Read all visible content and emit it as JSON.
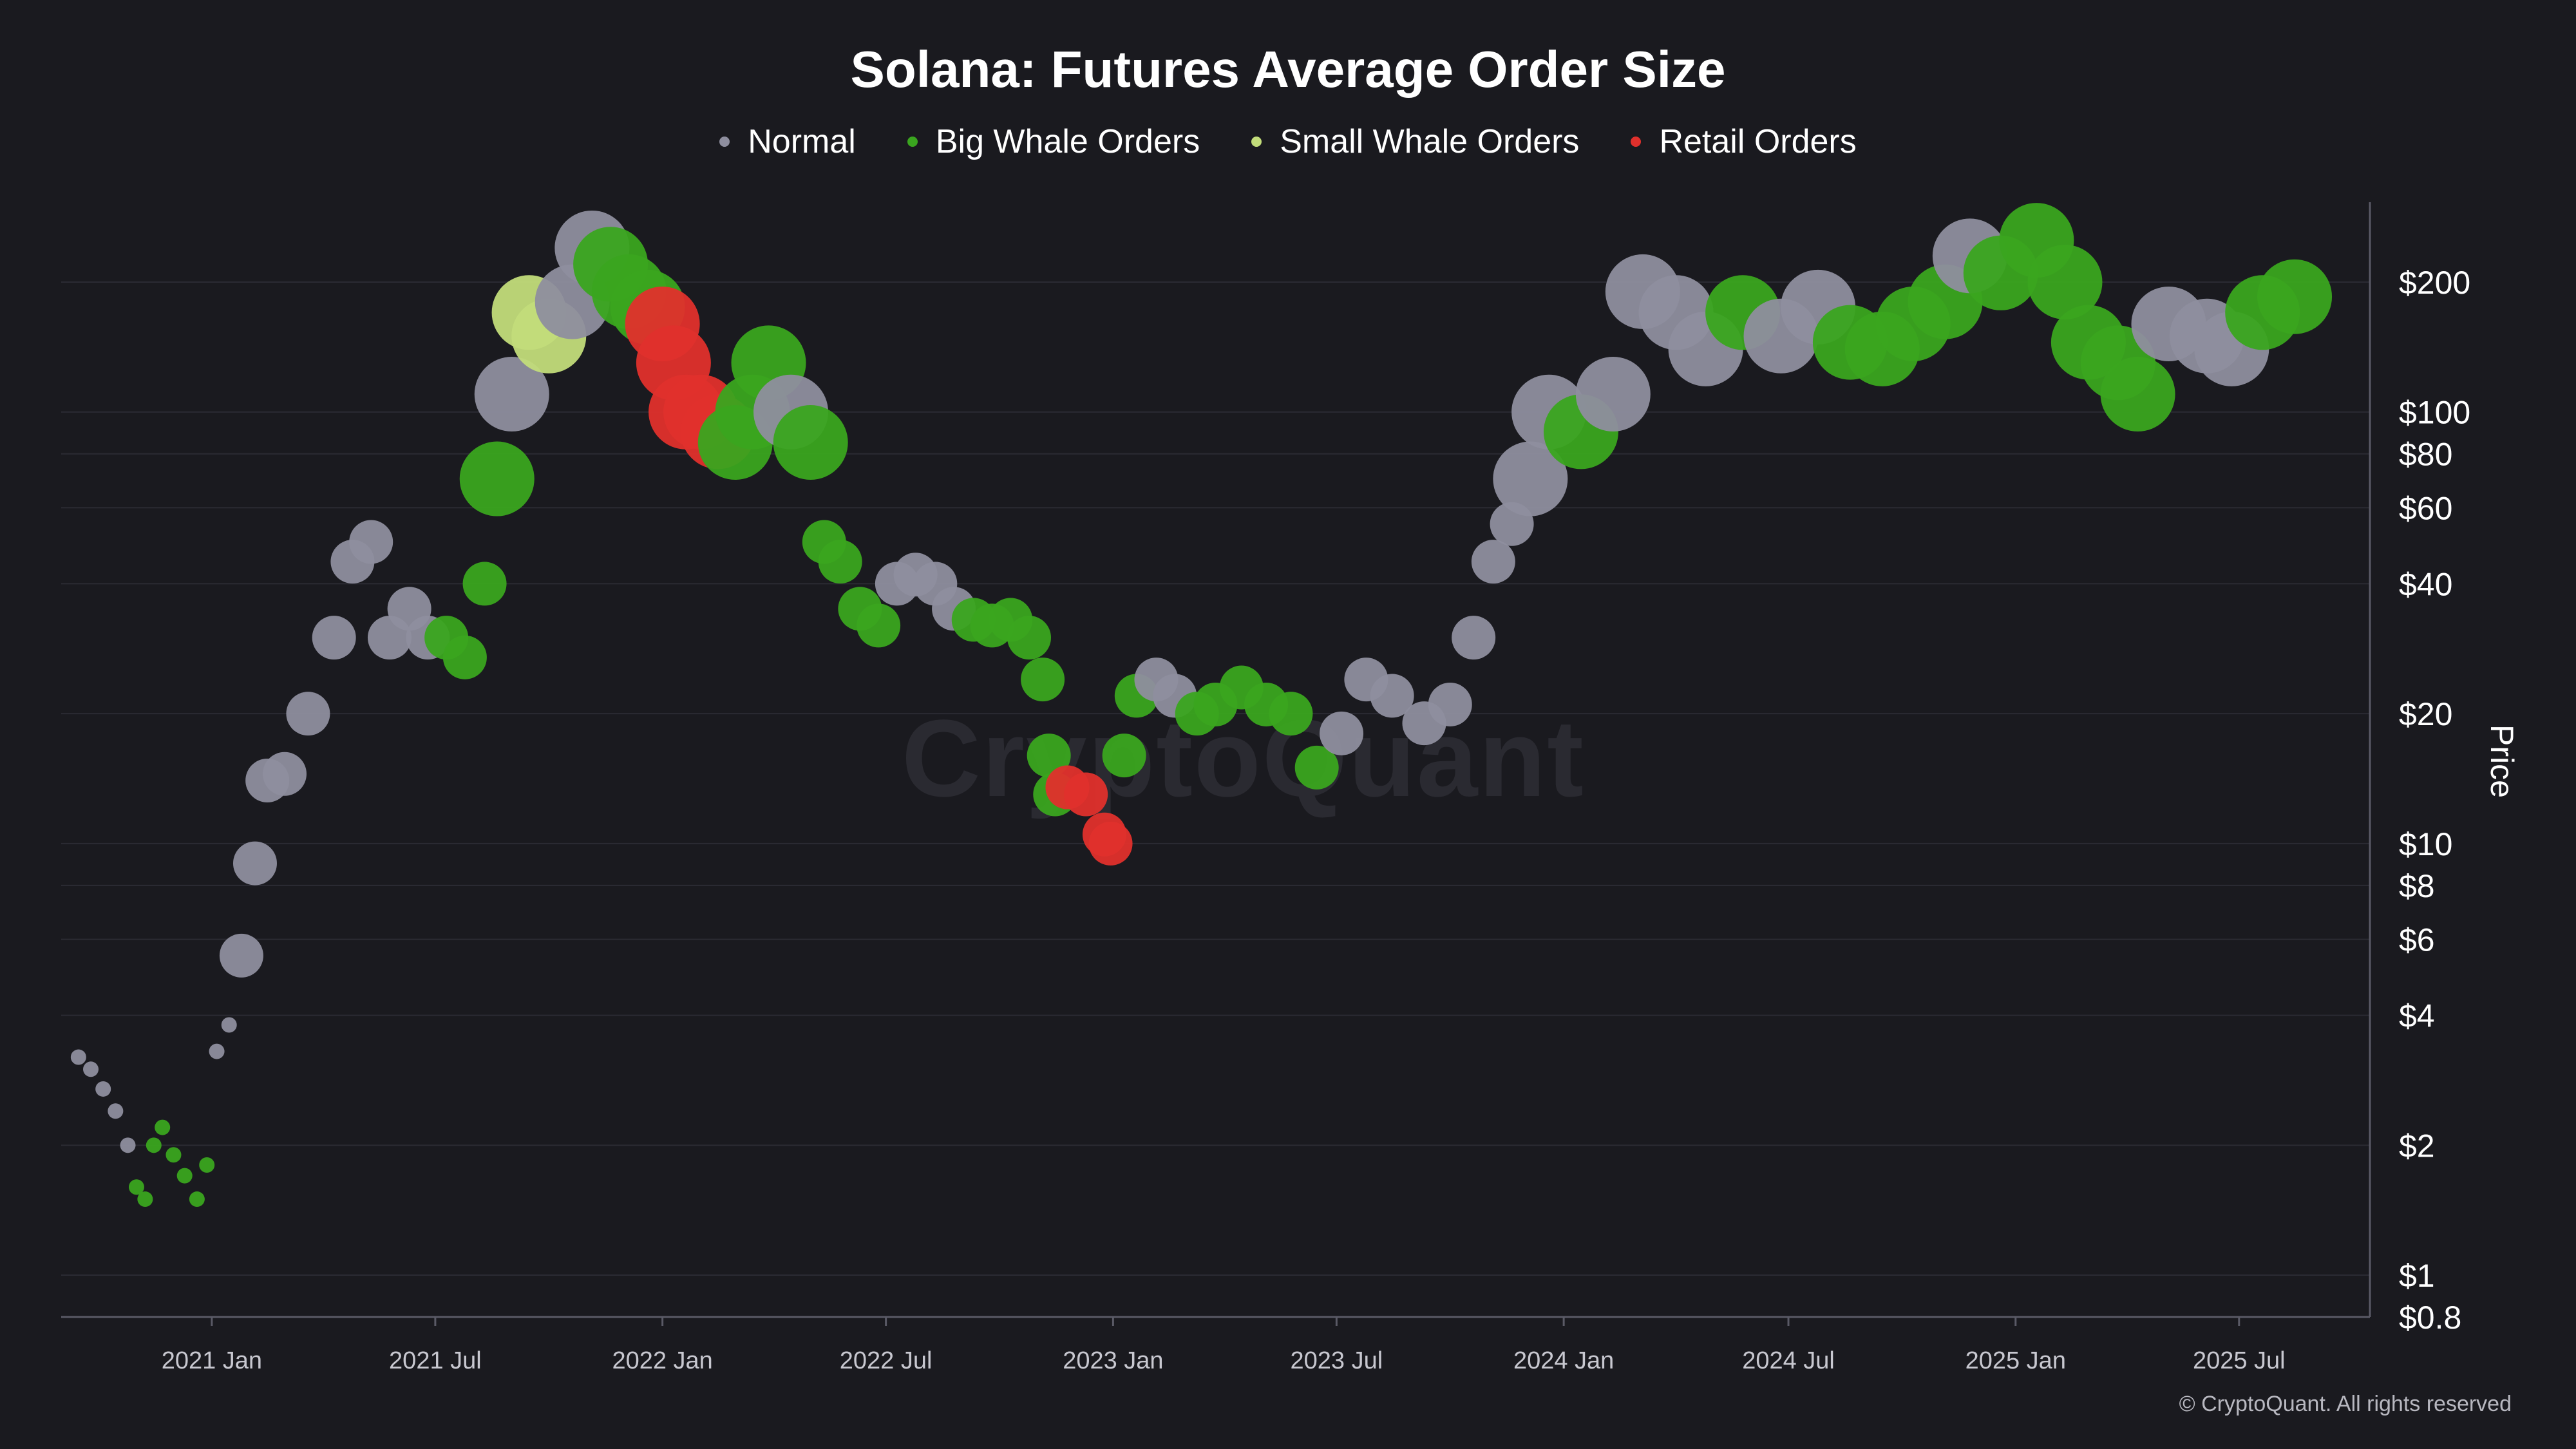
{
  "title": "Solana: Futures Average Order Size",
  "watermark": "CryptoQuant",
  "copyright": "© CryptoQuant. All rights reserved",
  "legend": [
    {
      "label": "Normal",
      "color": "#8e8e9e"
    },
    {
      "label": "Big Whale Orders",
      "color": "#3aa51f"
    },
    {
      "label": "Small Whale Orders",
      "color": "#c2dc7a"
    },
    {
      "label": "Retail Orders",
      "color": "#e0302c"
    }
  ],
  "chart_data": {
    "type": "scatter",
    "title": "Solana: Futures Average Order Size",
    "ylabel": "Price",
    "yscale": "log",
    "ylim": [
      0.8,
      300
    ],
    "xlim": [
      "2020-09-01",
      "2025-10-15"
    ],
    "x_ticks": [
      {
        "date": "2021-01-01",
        "label": "2021 Jan"
      },
      {
        "date": "2021-07-01",
        "label": "2021 Jul"
      },
      {
        "date": "2022-01-01",
        "label": "2022 Jan"
      },
      {
        "date": "2022-07-01",
        "label": "2022 Jul"
      },
      {
        "date": "2023-01-01",
        "label": "2023 Jan"
      },
      {
        "date": "2023-07-01",
        "label": "2023 Jul"
      },
      {
        "date": "2024-01-01",
        "label": "2024 Jan"
      },
      {
        "date": "2024-07-01",
        "label": "2024 Jul"
      },
      {
        "date": "2025-01-01",
        "label": "2025 Jan"
      },
      {
        "date": "2025-07-01",
        "label": "2025 Jul"
      }
    ],
    "y_ticks": [
      {
        "value": 200,
        "label": "$200"
      },
      {
        "value": 100,
        "label": "$100"
      },
      {
        "value": 80,
        "label": "$80"
      },
      {
        "value": 60,
        "label": "$60"
      },
      {
        "value": 40,
        "label": "$40"
      },
      {
        "value": 20,
        "label": "$20"
      },
      {
        "value": 10,
        "label": "$10"
      },
      {
        "value": 8,
        "label": "$8"
      },
      {
        "value": 6,
        "label": "$6"
      },
      {
        "value": 4,
        "label": "$4"
      },
      {
        "value": 2,
        "label": "$2"
      },
      {
        "value": 1,
        "label": "$1"
      },
      {
        "value": 0.8,
        "label": "$0.8"
      }
    ],
    "categories": {
      "N": "Normal",
      "B": "Big Whale Orders",
      "S": "Small Whale Orders",
      "R": "Retail Orders"
    },
    "points": [
      {
        "x": "2020-09-15",
        "y": 3.2,
        "c": "N"
      },
      {
        "x": "2020-09-25",
        "y": 3.0,
        "c": "N"
      },
      {
        "x": "2020-10-05",
        "y": 2.7,
        "c": "N"
      },
      {
        "x": "2020-10-15",
        "y": 2.4,
        "c": "N"
      },
      {
        "x": "2020-10-25",
        "y": 2.0,
        "c": "N"
      },
      {
        "x": "2020-11-01",
        "y": 1.6,
        "c": "B"
      },
      {
        "x": "2020-11-08",
        "y": 1.5,
        "c": "B"
      },
      {
        "x": "2020-11-15",
        "y": 2.0,
        "c": "B"
      },
      {
        "x": "2020-11-22",
        "y": 2.2,
        "c": "B"
      },
      {
        "x": "2020-12-01",
        "y": 1.9,
        "c": "B"
      },
      {
        "x": "2020-12-10",
        "y": 1.7,
        "c": "B"
      },
      {
        "x": "2020-12-20",
        "y": 1.5,
        "c": "B"
      },
      {
        "x": "2020-12-28",
        "y": 1.8,
        "c": "B"
      },
      {
        "x": "2021-01-05",
        "y": 3.3,
        "c": "N"
      },
      {
        "x": "2021-01-15",
        "y": 3.8,
        "c": "N"
      },
      {
        "x": "2021-01-25",
        "y": 5.5,
        "c": "N"
      },
      {
        "x": "2021-02-05",
        "y": 9.0,
        "c": "N"
      },
      {
        "x": "2021-02-15",
        "y": 14.0,
        "c": "N"
      },
      {
        "x": "2021-03-01",
        "y": 14.5,
        "c": "N"
      },
      {
        "x": "2021-03-20",
        "y": 20.0,
        "c": "N"
      },
      {
        "x": "2021-04-10",
        "y": 30.0,
        "c": "N"
      },
      {
        "x": "2021-04-25",
        "y": 45.0,
        "c": "N"
      },
      {
        "x": "2021-05-10",
        "y": 50.0,
        "c": "N"
      },
      {
        "x": "2021-05-25",
        "y": 30.0,
        "c": "N"
      },
      {
        "x": "2021-06-10",
        "y": 35.0,
        "c": "N"
      },
      {
        "x": "2021-06-25",
        "y": 30.0,
        "c": "N"
      },
      {
        "x": "2021-07-10",
        "y": 30.0,
        "c": "B"
      },
      {
        "x": "2021-07-25",
        "y": 27.0,
        "c": "B"
      },
      {
        "x": "2021-08-10",
        "y": 40.0,
        "c": "B"
      },
      {
        "x": "2021-08-20",
        "y": 70.0,
        "c": "B"
      },
      {
        "x": "2021-09-01",
        "y": 110.0,
        "c": "N"
      },
      {
        "x": "2021-09-15",
        "y": 170.0,
        "c": "S"
      },
      {
        "x": "2021-10-01",
        "y": 150.0,
        "c": "S"
      },
      {
        "x": "2021-10-20",
        "y": 180.0,
        "c": "N"
      },
      {
        "x": "2021-11-05",
        "y": 240.0,
        "c": "N"
      },
      {
        "x": "2021-11-20",
        "y": 220.0,
        "c": "B"
      },
      {
        "x": "2021-12-05",
        "y": 190.0,
        "c": "B"
      },
      {
        "x": "2021-12-20",
        "y": 175.0,
        "c": "B"
      },
      {
        "x": "2022-01-01",
        "y": 160.0,
        "c": "R"
      },
      {
        "x": "2022-01-10",
        "y": 130.0,
        "c": "R"
      },
      {
        "x": "2022-01-20",
        "y": 100.0,
        "c": "R"
      },
      {
        "x": "2022-02-01",
        "y": 100.0,
        "c": "R"
      },
      {
        "x": "2022-02-15",
        "y": 90.0,
        "c": "R"
      },
      {
        "x": "2022-03-01",
        "y": 85.0,
        "c": "B"
      },
      {
        "x": "2022-03-15",
        "y": 100.0,
        "c": "B"
      },
      {
        "x": "2022-03-28",
        "y": 130.0,
        "c": "B"
      },
      {
        "x": "2022-04-15",
        "y": 100.0,
        "c": "N"
      },
      {
        "x": "2022-05-01",
        "y": 85.0,
        "c": "B"
      },
      {
        "x": "2022-05-12",
        "y": 50.0,
        "c": "B"
      },
      {
        "x": "2022-05-25",
        "y": 45.0,
        "c": "B"
      },
      {
        "x": "2022-06-10",
        "y": 35.0,
        "c": "B"
      },
      {
        "x": "2022-06-25",
        "y": 32.0,
        "c": "B"
      },
      {
        "x": "2022-07-10",
        "y": 40.0,
        "c": "N"
      },
      {
        "x": "2022-07-25",
        "y": 42.0,
        "c": "N"
      },
      {
        "x": "2022-08-10",
        "y": 40.0,
        "c": "N"
      },
      {
        "x": "2022-08-25",
        "y": 35.0,
        "c": "N"
      },
      {
        "x": "2022-09-10",
        "y": 33.0,
        "c": "B"
      },
      {
        "x": "2022-09-25",
        "y": 32.0,
        "c": "B"
      },
      {
        "x": "2022-10-10",
        "y": 33.0,
        "c": "B"
      },
      {
        "x": "2022-10-25",
        "y": 30.0,
        "c": "B"
      },
      {
        "x": "2022-11-05",
        "y": 24.0,
        "c": "B"
      },
      {
        "x": "2022-11-10",
        "y": 16.0,
        "c": "B"
      },
      {
        "x": "2022-11-15",
        "y": 13.0,
        "c": "B"
      },
      {
        "x": "2022-11-25",
        "y": 13.5,
        "c": "R"
      },
      {
        "x": "2022-12-10",
        "y": 13.0,
        "c": "R"
      },
      {
        "x": "2022-12-25",
        "y": 10.5,
        "c": "R"
      },
      {
        "x": "2022-12-30",
        "y": 10.0,
        "c": "R"
      },
      {
        "x": "2023-01-10",
        "y": 16.0,
        "c": "B"
      },
      {
        "x": "2023-01-20",
        "y": 22.0,
        "c": "B"
      },
      {
        "x": "2023-02-05",
        "y": 24.0,
        "c": "N"
      },
      {
        "x": "2023-02-20",
        "y": 22.0,
        "c": "N"
      },
      {
        "x": "2023-03-10",
        "y": 20.0,
        "c": "B"
      },
      {
        "x": "2023-03-25",
        "y": 21.0,
        "c": "B"
      },
      {
        "x": "2023-04-15",
        "y": 23.0,
        "c": "B"
      },
      {
        "x": "2023-05-05",
        "y": 21.0,
        "c": "B"
      },
      {
        "x": "2023-05-25",
        "y": 20.0,
        "c": "B"
      },
      {
        "x": "2023-06-15",
        "y": 15.0,
        "c": "B"
      },
      {
        "x": "2023-07-05",
        "y": 18.0,
        "c": "N"
      },
      {
        "x": "2023-07-25",
        "y": 24.0,
        "c": "N"
      },
      {
        "x": "2023-08-15",
        "y": 22.0,
        "c": "N"
      },
      {
        "x": "2023-09-10",
        "y": 19.0,
        "c": "N"
      },
      {
        "x": "2023-10-01",
        "y": 21.0,
        "c": "N"
      },
      {
        "x": "2023-10-20",
        "y": 30.0,
        "c": "N"
      },
      {
        "x": "2023-11-05",
        "y": 45.0,
        "c": "N"
      },
      {
        "x": "2023-11-20",
        "y": 55.0,
        "c": "N"
      },
      {
        "x": "2023-12-05",
        "y": 70.0,
        "c": "N"
      },
      {
        "x": "2023-12-20",
        "y": 100.0,
        "c": "N"
      },
      {
        "x": "2024-01-15",
        "y": 90.0,
        "c": "B"
      },
      {
        "x": "2024-02-10",
        "y": 110.0,
        "c": "N"
      },
      {
        "x": "2024-03-05",
        "y": 190.0,
        "c": "N"
      },
      {
        "x": "2024-04-01",
        "y": 170.0,
        "c": "N"
      },
      {
        "x": "2024-04-25",
        "y": 140.0,
        "c": "N"
      },
      {
        "x": "2024-05-25",
        "y": 170.0,
        "c": "B"
      },
      {
        "x": "2024-06-25",
        "y": 150.0,
        "c": "N"
      },
      {
        "x": "2024-07-25",
        "y": 175.0,
        "c": "N"
      },
      {
        "x": "2024-08-20",
        "y": 145.0,
        "c": "B"
      },
      {
        "x": "2024-09-15",
        "y": 140.0,
        "c": "B"
      },
      {
        "x": "2024-10-10",
        "y": 160.0,
        "c": "B"
      },
      {
        "x": "2024-11-05",
        "y": 180.0,
        "c": "B"
      },
      {
        "x": "2024-11-25",
        "y": 230.0,
        "c": "N"
      },
      {
        "x": "2024-12-20",
        "y": 210.0,
        "c": "B"
      },
      {
        "x": "2025-01-18",
        "y": 250.0,
        "c": "B"
      },
      {
        "x": "2025-02-10",
        "y": 200.0,
        "c": "B"
      },
      {
        "x": "2025-03-01",
        "y": 145.0,
        "c": "B"
      },
      {
        "x": "2025-03-25",
        "y": 130.0,
        "c": "B"
      },
      {
        "x": "2025-04-10",
        "y": 110.0,
        "c": "B"
      },
      {
        "x": "2025-05-05",
        "y": 160.0,
        "c": "N"
      },
      {
        "x": "2025-06-05",
        "y": 150.0,
        "c": "N"
      },
      {
        "x": "2025-06-25",
        "y": 140.0,
        "c": "N"
      },
      {
        "x": "2025-07-20",
        "y": 170.0,
        "c": "B"
      },
      {
        "x": "2025-08-15",
        "y": 185.0,
        "c": "B"
      }
    ]
  }
}
